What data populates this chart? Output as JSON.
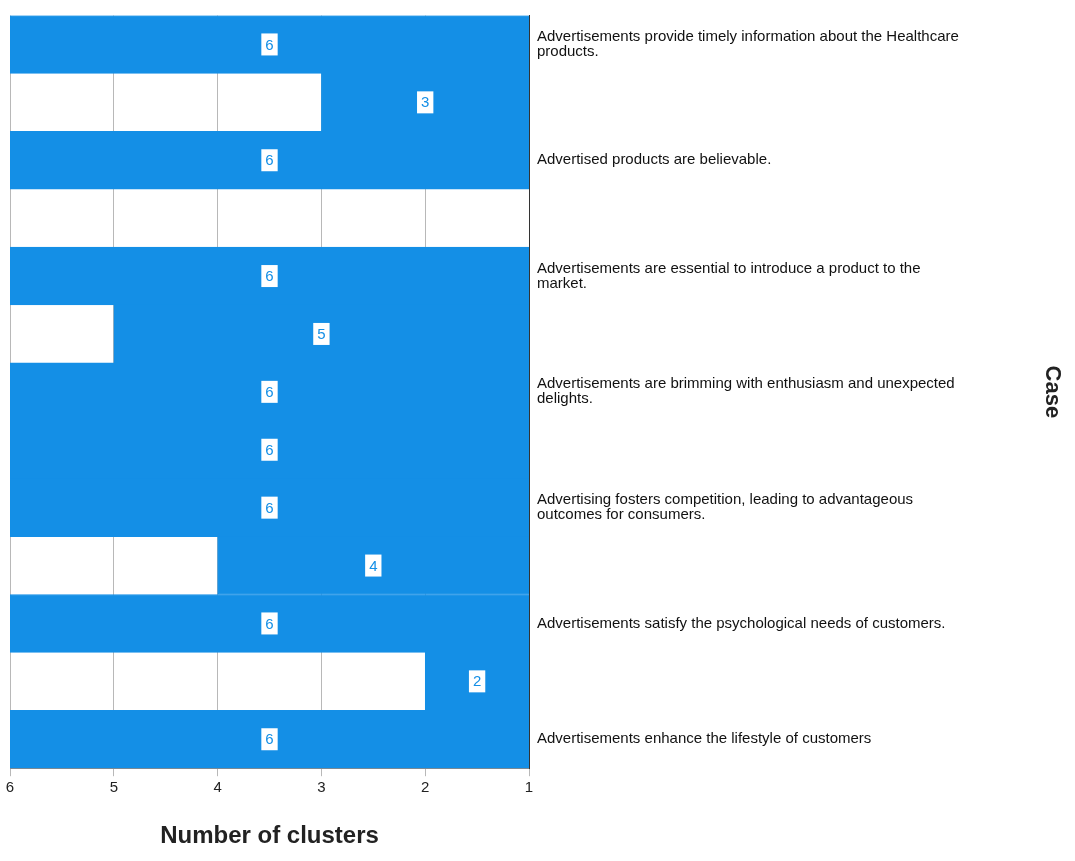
{
  "chart_data": {
    "type": "bar",
    "orientation": "horizontal",
    "categories": [
      "Advertisements provide timely information about the Healthcare products.",
      null,
      "Advertised products are believable.",
      null,
      "Advertisements are essential to introduce a product to the market.",
      null,
      "Advertisements are brimming with enthusiasm and unexpected delights.",
      null,
      "Advertising fosters competition, leading to advantageous outcomes for consumers.",
      null,
      "Advertisements satisfy the psychological needs of customers.",
      null,
      "Advertisements enhance the lifestyle of customers"
    ],
    "values": [
      6,
      3,
      6,
      null,
      6,
      5,
      6,
      6,
      6,
      4,
      6,
      2,
      6
    ],
    "color": "#148fe6",
    "xlim": [
      6,
      1
    ],
    "xticks": [
      6,
      5,
      4,
      3,
      2,
      1
    ],
    "xlabel": "Number of clusters",
    "ylabel": "Case",
    "grid": "x",
    "data_labels": true,
    "legend": false
  }
}
